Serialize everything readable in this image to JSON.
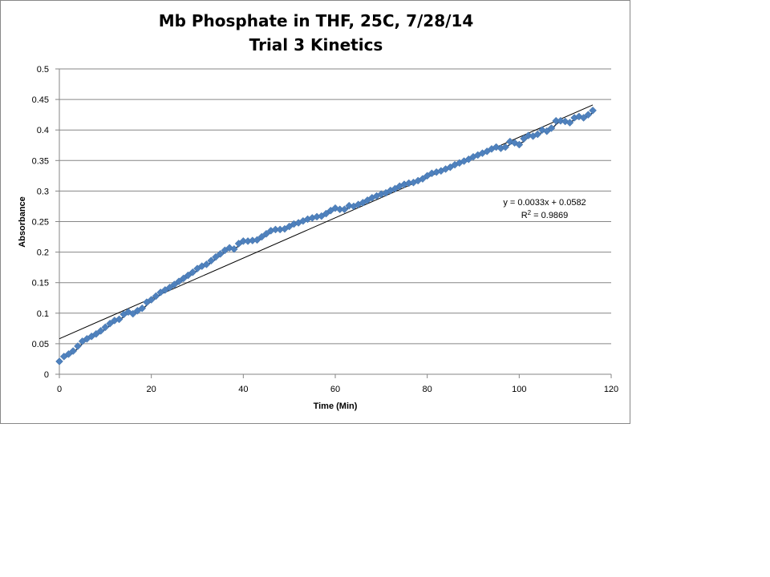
{
  "chart_data": {
    "type": "scatter",
    "title": "Mb Phosphate in THF, 25C, 7/28/14",
    "subtitle": "Trial 3 Kinetics",
    "xlabel": "Time (Min)",
    "ylabel": "Absorbance",
    "xlim": [
      0,
      120
    ],
    "ylim": [
      0,
      0.5
    ],
    "x_ticks": [
      "0",
      "20",
      "40",
      "60",
      "80",
      "100",
      "120"
    ],
    "y_ticks": [
      "0",
      "0.05",
      "0.1",
      "0.15",
      "0.2",
      "0.25",
      "0.3",
      "0.35",
      "0.4",
      "0.45",
      "0.5"
    ],
    "grid": "horizontal",
    "legend": "none",
    "marker_color": "#4F81BD",
    "line_color": "#000000",
    "series": [
      {
        "x": [
          0,
          1,
          2,
          3,
          4,
          5,
          6,
          7,
          8,
          9,
          10,
          11,
          12,
          13,
          14,
          15,
          16,
          17,
          18,
          19,
          20,
          21,
          22,
          23,
          24,
          25,
          26,
          27,
          28,
          29,
          30,
          31,
          32,
          33,
          34,
          35,
          36,
          37,
          38,
          39,
          40,
          41,
          42,
          43,
          44,
          45,
          46,
          47,
          48,
          49,
          50,
          51,
          52,
          53,
          54,
          55,
          56,
          57,
          58,
          59,
          60,
          61,
          62,
          63,
          64,
          65,
          66,
          67,
          68,
          69,
          70,
          71,
          72,
          73,
          74,
          75,
          76,
          77,
          78,
          79,
          80,
          81,
          82,
          83,
          84,
          85,
          86,
          87,
          88,
          89,
          90,
          91,
          92,
          93,
          94,
          95,
          96,
          97,
          98,
          99,
          100,
          101,
          102,
          103,
          104,
          105,
          106,
          107,
          108,
          109,
          110,
          111,
          112,
          113,
          114,
          115,
          116
        ],
        "y": [
          0.021,
          0.029,
          0.033,
          0.038,
          0.046,
          0.054,
          0.058,
          0.062,
          0.066,
          0.071,
          0.077,
          0.083,
          0.088,
          0.09,
          0.098,
          0.102,
          0.099,
          0.104,
          0.108,
          0.118,
          0.122,
          0.128,
          0.134,
          0.138,
          0.142,
          0.147,
          0.152,
          0.157,
          0.162,
          0.167,
          0.173,
          0.177,
          0.18,
          0.186,
          0.192,
          0.197,
          0.203,
          0.207,
          0.205,
          0.214,
          0.218,
          0.218,
          0.219,
          0.22,
          0.225,
          0.23,
          0.235,
          0.237,
          0.237,
          0.238,
          0.242,
          0.246,
          0.248,
          0.251,
          0.254,
          0.256,
          0.258,
          0.259,
          0.263,
          0.268,
          0.272,
          0.27,
          0.27,
          0.276,
          0.275,
          0.278,
          0.281,
          0.285,
          0.289,
          0.292,
          0.295,
          0.297,
          0.301,
          0.304,
          0.308,
          0.311,
          0.313,
          0.314,
          0.317,
          0.32,
          0.325,
          0.329,
          0.331,
          0.333,
          0.336,
          0.339,
          0.343,
          0.346,
          0.349,
          0.352,
          0.356,
          0.359,
          0.362,
          0.365,
          0.369,
          0.372,
          0.37,
          0.372,
          0.381,
          0.379,
          0.376,
          0.386,
          0.391,
          0.39,
          0.393,
          0.4,
          0.398,
          0.403,
          0.415,
          0.415,
          0.414,
          0.412,
          0.42,
          0.422,
          0.42,
          0.425,
          0.432
        ]
      }
    ],
    "trendline": {
      "slope": 0.0033,
      "intercept": 0.0582,
      "x_start": 0,
      "x_end": 116
    },
    "annotations": {
      "equation": "y = 0.0033x + 0.0582",
      "r2_prefix": "R",
      "r2_sup": "2",
      "r2_value": " = 0.9869"
    }
  }
}
